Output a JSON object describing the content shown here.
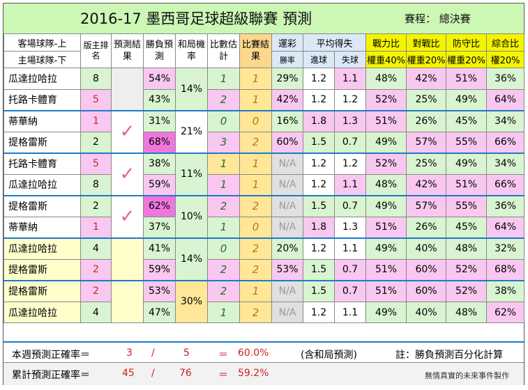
{
  "title": "2016-17 墨西哥足球超級聯賽  預測",
  "schedule": "賽程：  總決賽",
  "headers": {
    "team_top": "客場球隊-上",
    "team_bottom": "主場球隊-下",
    "rank": "版主排名",
    "pred_result": "預測結果",
    "win_loss": "勝負預測",
    "draw": "和局機率",
    "score_est": "比數估計",
    "match_result": "比賽結果",
    "lottery": "運彩",
    "lottery_sub": "勝率",
    "avg_goals": "平均得失",
    "goals_for": "進球",
    "goals_against": "失球",
    "power": "戰力比",
    "power_w": "權重40%",
    "h2h": "對戰比",
    "h2h_w": "權重20%",
    "defense": "防守比",
    "defense_w": "權重20%",
    "total": "綜合比",
    "total_w": "權20%"
  },
  "matches": [
    {
      "draw": "14%",
      "check": "",
      "rows": [
        {
          "team": "瓜達拉哈拉",
          "rank": "8",
          "win": "54%",
          "est": "1",
          "res": "1",
          "lot": "29%",
          "gf": "1.2",
          "ga": "1.1",
          "power": "48%",
          "h2h": "42%",
          "def": "51%",
          "tot": "36%"
        },
        {
          "team": "托路卡體育",
          "rank": "5",
          "win": "43%",
          "est": "2",
          "res": "1",
          "lot": "42%",
          "gf": "1.2",
          "ga": "1.2",
          "power": "52%",
          "h2h": "25%",
          "def": "49%",
          "tot": "64%"
        }
      ]
    },
    {
      "draw": "21%",
      "check": "✓",
      "rows": [
        {
          "team": "蒂華納",
          "rank": "1",
          "win": "31%",
          "est": "0",
          "res": "0",
          "lot": "16%",
          "gf": "1.8",
          "ga": "1.3",
          "power": "51%",
          "h2h": "26%",
          "def": "45%",
          "tot": "34%"
        },
        {
          "team": "提格雷斯",
          "rank": "2",
          "win": "68%",
          "est": "3",
          "res": "2",
          "lot": "60%",
          "gf": "1.5",
          "ga": "0.7",
          "power": "49%",
          "h2h": "57%",
          "def": "55%",
          "tot": "66%"
        }
      ]
    },
    {
      "draw": "11%",
      "check": "✓",
      "rows": [
        {
          "team": "托路卡體育",
          "rank": "5",
          "win": "38%",
          "est": "1",
          "res": "1",
          "lot": "N/A",
          "gf": "1.2",
          "ga": "1.2",
          "power": "52%",
          "h2h": "25%",
          "def": "49%",
          "tot": "34%"
        },
        {
          "team": "瓜達拉哈拉",
          "rank": "8",
          "win": "59%",
          "est": "1",
          "res": "1",
          "lot": "N/A",
          "gf": "1.2",
          "ga": "1.1",
          "power": "48%",
          "h2h": "42%",
          "def": "51%",
          "tot": "66%"
        }
      ]
    },
    {
      "draw": "10%",
      "check": "✓",
      "rows": [
        {
          "team": "提格雷斯",
          "rank": "2",
          "win": "62%",
          "est": "2",
          "res": "2",
          "lot": "N/A",
          "gf": "1.5",
          "ga": "0.7",
          "power": "49%",
          "h2h": "57%",
          "def": "55%",
          "tot": "36%"
        },
        {
          "team": "蒂華納",
          "rank": "1",
          "win": "37%",
          "est": "1",
          "res": "0",
          "lot": "N/A",
          "gf": "1.8",
          "ga": "1.3",
          "power": "51%",
          "h2h": "26%",
          "def": "45%",
          "tot": "64%"
        }
      ]
    },
    {
      "draw": "14%",
      "check": "",
      "rows": [
        {
          "team": "瓜達拉哈拉",
          "rank": "4",
          "win": "41%",
          "est": "0",
          "res": "2",
          "lot": "20%",
          "gf": "1.2",
          "ga": "1.1",
          "power": "49%",
          "h2h": "40%",
          "def": "48%",
          "tot": "32%"
        },
        {
          "team": "提格雷斯",
          "rank": "2",
          "win": "59%",
          "est": "2",
          "res": "2",
          "lot": "53%",
          "gf": "1.5",
          "ga": "0.7",
          "power": "51%",
          "h2h": "60%",
          "def": "52%",
          "tot": "68%"
        }
      ]
    },
    {
      "draw": "30%",
      "check": "",
      "rows": [
        {
          "team": "提格雷斯",
          "rank": "2",
          "win": "53%",
          "est": "2",
          "res": "1",
          "lot": "N/A",
          "gf": "1.5",
          "ga": "0.7",
          "power": "51%",
          "h2h": "60%",
          "def": "52%",
          "tot": "38%"
        },
        {
          "team": "瓜達拉哈拉",
          "rank": "4",
          "win": "47%",
          "est": "1",
          "res": "2",
          "lot": "N/A",
          "gf": "1.2",
          "ga": "1.1",
          "power": "49%",
          "h2h": "40%",
          "def": "48%",
          "tot": "62%"
        }
      ]
    }
  ],
  "footer": {
    "week_label": "本週預測正確率＝",
    "week_correct": "3",
    "slash": "/",
    "week_total": "5",
    "eq": "＝",
    "week_rate": "60.0%",
    "week_note": "(含和局預測)",
    "note": "註：勝負預測百分化計算",
    "cum_label": "累計預測正確率＝",
    "cum_correct": "45",
    "cum_total": "76",
    "cum_rate": "59.2%",
    "credit": "無情真實的未來事件製作"
  }
}
